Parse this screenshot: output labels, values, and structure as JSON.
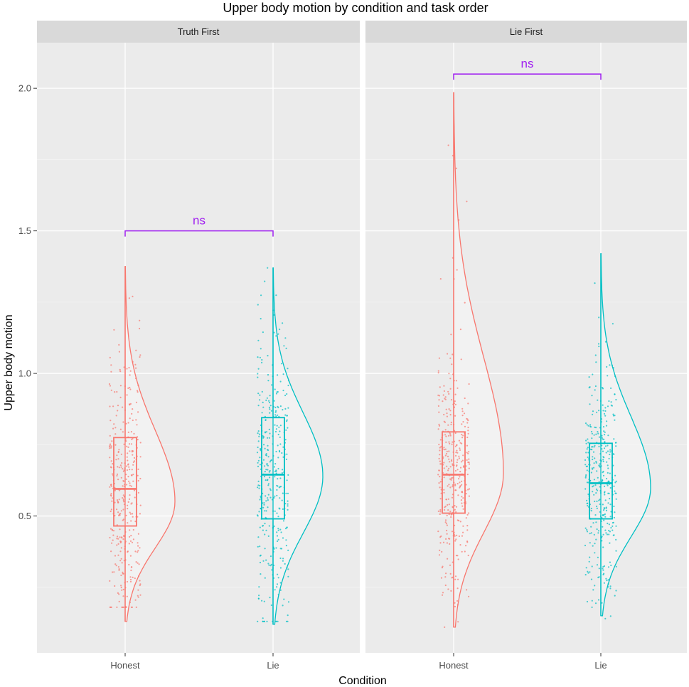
{
  "chart_data": {
    "type": "raincloud",
    "title": "Upper body motion by condition and task order",
    "xlabel": "Condition",
    "ylabel": "Upper body motion",
    "categories": [
      "Honest",
      "Lie"
    ],
    "ylim": [
      0.02,
      2.16
    ],
    "yticks": [
      0.5,
      1.0,
      1.5,
      2.0
    ],
    "ytick_labels": [
      "0.5",
      "1.0",
      "1.5",
      "2.0"
    ],
    "colors": {
      "Honest": "#F8766D",
      "Lie": "#00BFC4",
      "significance": "#A020F0"
    },
    "facets": [
      {
        "label": "Truth First",
        "series": [
          {
            "name": "Honest",
            "min": 0.13,
            "q1": 0.465,
            "median": 0.595,
            "q3": 0.775,
            "max": 1.375,
            "density_peak": 0.55,
            "jitter_range": [
              0.18,
              1.36
            ]
          },
          {
            "name": "Lie",
            "min": 0.12,
            "q1": 0.49,
            "median": 0.645,
            "q3": 0.845,
            "max": 1.37,
            "density_peak": 0.64,
            "jitter_range": [
              0.13,
              1.37
            ]
          }
        ],
        "comparison": {
          "label": "ns",
          "y": 1.5
        }
      },
      {
        "label": "Lie First",
        "series": [
          {
            "name": "Honest",
            "min": 0.11,
            "q1": 0.51,
            "median": 0.645,
            "q3": 0.795,
            "max": 1.985,
            "density_peak": 0.65,
            "jitter_range": [
              0.11,
              1.99
            ]
          },
          {
            "name": "Lie",
            "min": 0.15,
            "q1": 0.49,
            "median": 0.615,
            "q3": 0.755,
            "max": 1.42,
            "density_peak": 0.6,
            "jitter_range": [
              0.14,
              1.42
            ]
          }
        ],
        "comparison": {
          "label": "ns",
          "y": 2.05
        }
      }
    ]
  }
}
